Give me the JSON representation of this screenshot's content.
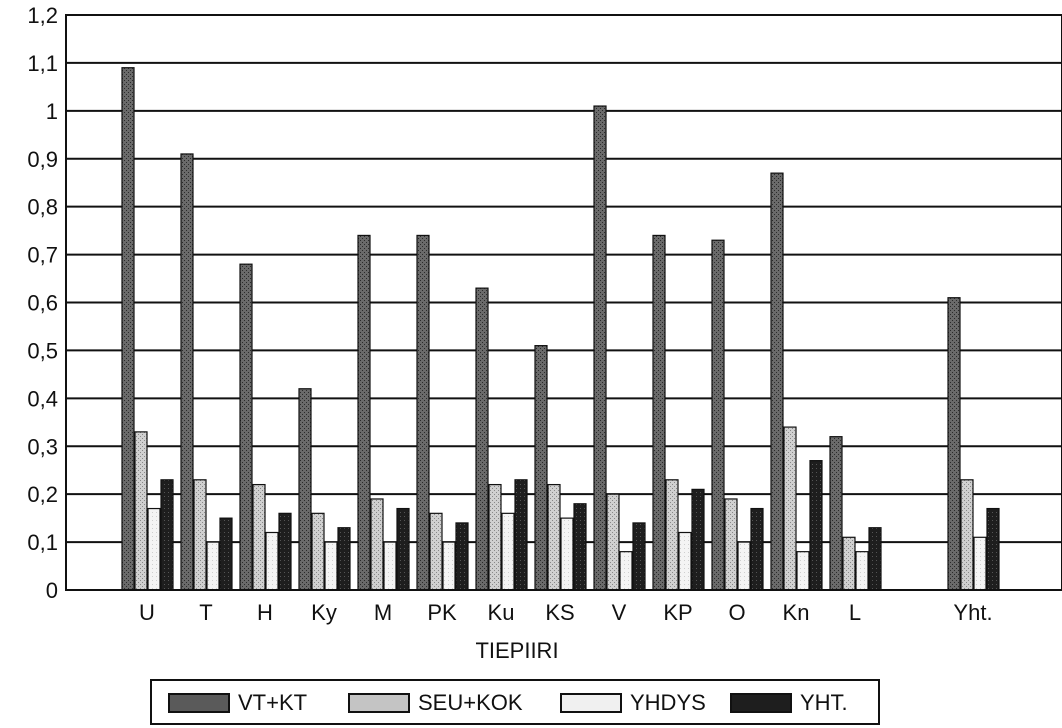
{
  "chart_data": {
    "type": "bar",
    "xlabel": "TIEPIIRI",
    "ylabel": "",
    "ylim": [
      0,
      1.2
    ],
    "yticks": [
      "0",
      "0,1",
      "0,2",
      "0,3",
      "0,4",
      "0,5",
      "0,6",
      "0,7",
      "0,8",
      "0,9",
      "1",
      "1,1",
      "1,2"
    ],
    "grid": true,
    "legend_position": "bottom",
    "categories": [
      "U",
      "T",
      "H",
      "Ky",
      "M",
      "PK",
      "Ku",
      "KS",
      "V",
      "KP",
      "O",
      "Kn",
      "L",
      "Yht."
    ],
    "series": [
      {
        "name": "VT+KT",
        "values": [
          1.09,
          0.91,
          0.68,
          0.42,
          0.74,
          0.74,
          0.63,
          0.51,
          1.01,
          0.74,
          0.73,
          0.87,
          0.32,
          0.61
        ]
      },
      {
        "name": "SEU+KOK",
        "values": [
          0.33,
          0.23,
          0.22,
          0.16,
          0.19,
          0.16,
          0.22,
          0.22,
          0.2,
          0.23,
          0.19,
          0.34,
          0.11,
          0.23
        ]
      },
      {
        "name": "YHDYS",
        "values": [
          0.17,
          0.1,
          0.12,
          0.1,
          0.1,
          0.1,
          0.16,
          0.15,
          0.08,
          0.12,
          0.1,
          0.08,
          0.08,
          0.11
        ]
      },
      {
        "name": "YHT.",
        "values": [
          0.23,
          0.15,
          0.16,
          0.13,
          0.17,
          0.14,
          0.23,
          0.18,
          0.14,
          0.21,
          0.17,
          0.27,
          0.13,
          0.17
        ]
      }
    ],
    "colors": [
      "#555555",
      "#c4c4c4",
      "#eeeeee",
      "#1e1e1e"
    ]
  }
}
